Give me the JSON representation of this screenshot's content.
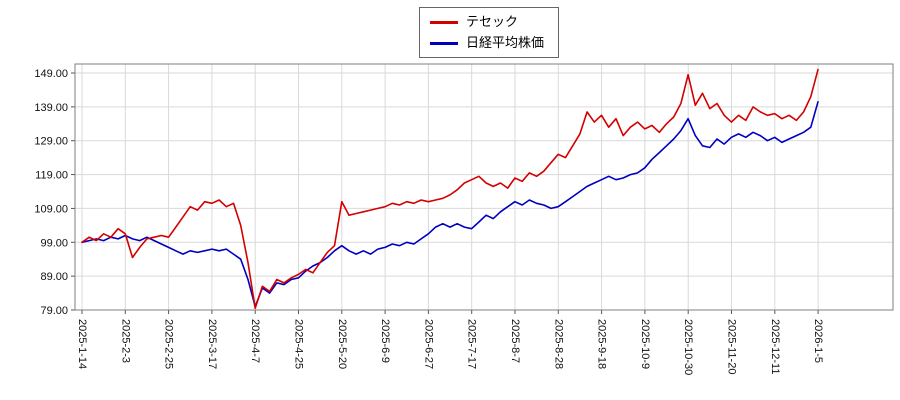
{
  "chart_data": {
    "type": "line",
    "title": "",
    "xlabel": "",
    "ylabel": "",
    "ylim": [
      79,
      149
    ],
    "grid": true,
    "legend_position": "top-center",
    "x_label_rotation": 90,
    "y_tick_labels": [
      "79.00",
      "89.00",
      "99.00",
      "109.00",
      "119.00",
      "129.00",
      "139.00",
      "149.00"
    ],
    "x_tick_labels": [
      "2025-1-14",
      "2025-2-3",
      "2025-2-25",
      "2025-3-17",
      "2025-4-7",
      "2025-4-25",
      "2025-5-20",
      "2025-6-9",
      "2025-6-27",
      "2025-7-17",
      "2025-8-7",
      "2025-8-28",
      "2025-9-18",
      "2025-10-9",
      "2025-10-30",
      "2025-11-20",
      "2025-12-11",
      "2026-1-5"
    ],
    "series": [
      {
        "name": "テセック",
        "color": "#d40000",
        "values": [
          99.0,
          100.5,
          99.5,
          101.5,
          100.5,
          103.0,
          101.5,
          94.5,
          97.5,
          100.0,
          100.5,
          101.0,
          100.5,
          103.5,
          106.5,
          109.5,
          108.5,
          111.0,
          110.5,
          111.5,
          109.5,
          110.5,
          104.0,
          93.0,
          79.5,
          86.0,
          84.5,
          88.0,
          87.0,
          88.5,
          89.5,
          91.0,
          90.0,
          93.0,
          96.0,
          98.0,
          111.0,
          107.0,
          107.5,
          108.0,
          108.5,
          109.0,
          109.5,
          110.5,
          110.0,
          111.0,
          110.5,
          111.5,
          111.0,
          111.5,
          112.0,
          113.0,
          114.5,
          116.5,
          117.5,
          118.5,
          116.5,
          115.5,
          116.5,
          115.0,
          118.0,
          117.0,
          119.5,
          118.5,
          120.0,
          122.5,
          125.0,
          124.0,
          127.5,
          131.0,
          137.5,
          134.5,
          136.5,
          133.0,
          135.5,
          130.5,
          133.0,
          134.5,
          132.5,
          133.5,
          131.5,
          134.0,
          136.0,
          140.0,
          148.5,
          139.5,
          143.0,
          138.5,
          140.0,
          136.5,
          134.5,
          136.5,
          135.0,
          139.0,
          137.5,
          136.5,
          137.0,
          135.5,
          136.5,
          135.0,
          137.5,
          142.0,
          150.0
        ]
      },
      {
        "name": "日経平均株価",
        "color": "#0000c0",
        "values": [
          99.0,
          99.5,
          100.0,
          99.5,
          100.5,
          100.0,
          101.0,
          100.0,
          99.5,
          100.5,
          99.5,
          98.5,
          97.5,
          96.5,
          95.5,
          96.5,
          96.0,
          96.5,
          97.0,
          96.5,
          97.0,
          95.5,
          94.0,
          88.0,
          80.0,
          85.5,
          84.0,
          87.0,
          86.5,
          88.0,
          88.5,
          90.5,
          92.0,
          93.0,
          94.5,
          96.5,
          98.0,
          96.5,
          95.5,
          96.5,
          95.5,
          97.0,
          97.5,
          98.5,
          98.0,
          99.0,
          98.5,
          100.0,
          101.5,
          103.5,
          104.5,
          103.5,
          104.5,
          103.5,
          103.0,
          105.0,
          107.0,
          106.0,
          108.0,
          109.5,
          111.0,
          110.0,
          111.5,
          110.5,
          110.0,
          109.0,
          109.5,
          111.0,
          112.5,
          114.0,
          115.5,
          116.5,
          117.5,
          118.5,
          117.5,
          118.0,
          119.0,
          119.5,
          121.0,
          123.5,
          125.5,
          127.5,
          129.5,
          132.0,
          135.5,
          130.5,
          127.5,
          127.0,
          129.5,
          128.0,
          130.0,
          131.0,
          130.0,
          131.5,
          130.5,
          129.0,
          130.0,
          128.5,
          129.5,
          130.5,
          131.5,
          133.0,
          140.5
        ]
      }
    ]
  }
}
